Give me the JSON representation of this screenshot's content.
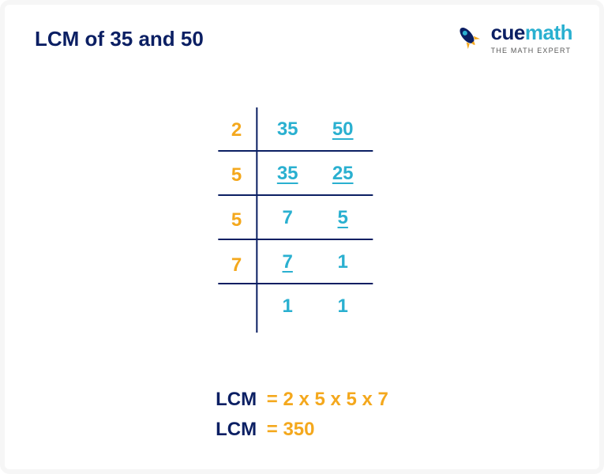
{
  "colors": {
    "navy": "#0b1f63",
    "orange": "#f4a81d",
    "teal": "#2ab0d0",
    "rule": "#0b1f63",
    "logo_tagline": "#5a5a5a"
  },
  "title": {
    "prefix": "LCM of ",
    "a": "35",
    "mid": " and ",
    "b": "50"
  },
  "logo": {
    "brand_cue": "cue",
    "brand_math": "math",
    "tagline": "THE MATH EXPERT"
  },
  "ladder": {
    "divisors": [
      "2",
      "5",
      "5",
      "7",
      ""
    ],
    "rows": [
      {
        "a": "35",
        "a_u": false,
        "b": "50",
        "b_u": true
      },
      {
        "a": "35",
        "a_u": true,
        "b": "25",
        "b_u": true
      },
      {
        "a": "7",
        "a_u": false,
        "b": "5",
        "b_u": true
      },
      {
        "a": "7",
        "a_u": true,
        "b": "1",
        "b_u": false
      },
      {
        "a": "1",
        "a_u": false,
        "b": "1",
        "b_u": false
      }
    ]
  },
  "result": {
    "label": "LCM",
    "eq_expr": "= 2 x 5 x 5 x 7",
    "eq_val": "= 350"
  },
  "typography": {
    "title_fontsize": 26,
    "cell_fontsize": 24,
    "result_fontsize": 24
  }
}
